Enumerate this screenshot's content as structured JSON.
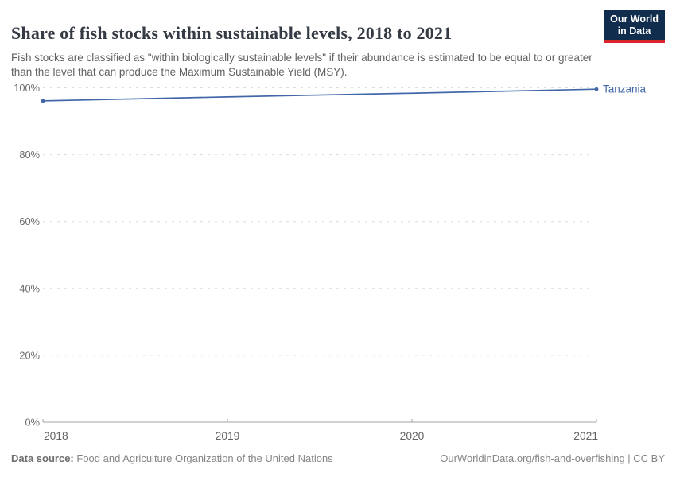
{
  "header": {
    "title": "Share of fish stocks within sustainable levels, 2018 to 2021",
    "subtitle": "Fish stocks are classified as \"within biologically sustainable levels\" if their abundance is estimated to be equal to or greater than the level that can produce the Maximum Sustainable Yield (MSY).",
    "logo": {
      "line1": "Our World",
      "line2": "in Data"
    }
  },
  "chart_data": {
    "type": "line",
    "title": "Share of fish stocks within sustainable levels, 2018 to 2021",
    "x": [
      2018,
      2019,
      2020,
      2021
    ],
    "xtick_labels": [
      "2018",
      "2019",
      "2020",
      "2021"
    ],
    "series": [
      {
        "name": "Tanzania",
        "values": [
          96.1,
          97.3,
          98.4,
          99.6
        ],
        "color": "#4167a8"
      }
    ],
    "xlabel": "",
    "ylabel": "",
    "ylim": [
      0,
      100
    ],
    "yticks": [
      0,
      20,
      40,
      60,
      80,
      100
    ],
    "ytick_labels": [
      "0%",
      "20%",
      "40%",
      "60%",
      "80%",
      "100%"
    ],
    "grid": "horizontal-dashed",
    "legend_position": "end-of-line-label",
    "markers": "endpoints-only"
  },
  "footer": {
    "source_label": "Data source:",
    "source_text": "Food and Agriculture Organization of the United Nations",
    "attribution": "OurWorldinData.org/fish-and-overfishing | CC BY"
  },
  "colors": {
    "line": "#4167a8",
    "gridline": "#dcdcdc",
    "axis": "#a3a3a3",
    "tick_label": "#6b6b6b",
    "title_text": "#353b45",
    "subtitle_text": "#616161",
    "footer_text": "#858585",
    "logo_background": "#112d4e",
    "logo_accent": "#d8252c"
  }
}
